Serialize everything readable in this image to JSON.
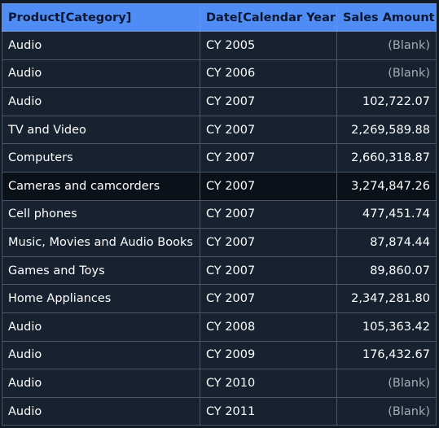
{
  "table": {
    "columns": [
      "Product[Category]",
      "Date[Calendar Year]",
      "Sales Amount"
    ],
    "rows": [
      {
        "category": "Audio",
        "year": "CY 2005",
        "sales": "(Blank)"
      },
      {
        "category": "Audio",
        "year": "CY 2006",
        "sales": "(Blank)"
      },
      {
        "category": "Audio",
        "year": "CY 2007",
        "sales": "102,722.07"
      },
      {
        "category": "TV and Video",
        "year": "CY 2007",
        "sales": "2,269,589.88"
      },
      {
        "category": "Computers",
        "year": "CY 2007",
        "sales": "2,660,318.87"
      },
      {
        "category": "Cameras and camcorders",
        "year": "CY 2007",
        "sales": "3,274,847.26"
      },
      {
        "category": "Cell phones",
        "year": "CY 2007",
        "sales": "477,451.74"
      },
      {
        "category": "Music, Movies and Audio Books",
        "year": "CY 2007",
        "sales": "87,874.44"
      },
      {
        "category": "Games and Toys",
        "year": "CY 2007",
        "sales": "89,860.07"
      },
      {
        "category": "Home Appliances",
        "year": "CY 2007",
        "sales": "2,347,281.80"
      },
      {
        "category": "Audio",
        "year": "CY 2008",
        "sales": "105,363.42"
      },
      {
        "category": "Audio",
        "year": "CY 2009",
        "sales": "176,432.67"
      },
      {
        "category": "Audio",
        "year": "CY 2010",
        "sales": "(Blank)"
      },
      {
        "category": "Audio",
        "year": "CY 2011",
        "sales": "(Blank)"
      }
    ]
  },
  "colors": {
    "header_bg": "#4f8df5",
    "header_text": "#0b1733",
    "row_bg": "#17212f",
    "selected_row_bg": "#0b1119",
    "blank_text": "#a6acb4"
  }
}
